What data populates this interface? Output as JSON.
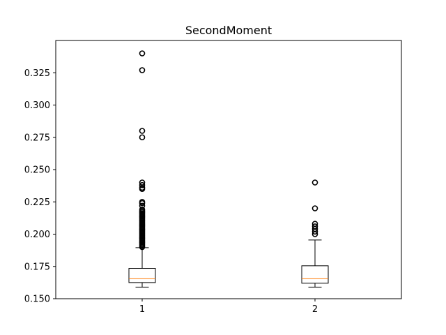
{
  "chart_data": {
    "type": "box",
    "title": "SecondMoment",
    "xlabel": "",
    "ylabel": "",
    "categories": [
      "1",
      "2"
    ],
    "ylim": [
      0.15,
      0.35
    ],
    "yticks": [
      "0.150",
      "0.175",
      "0.200",
      "0.225",
      "0.250",
      "0.275",
      "0.300",
      "0.325"
    ],
    "grid": false,
    "colors": {
      "median": "#ff7f0e",
      "box": "#000000",
      "background": "#ffffff"
    },
    "boxes": [
      {
        "category": "1",
        "whisker_low": 0.159,
        "q1": 0.1625,
        "median": 0.1655,
        "q3": 0.1735,
        "whisker_high": 0.1895,
        "outliers": [
          0.19,
          0.191,
          0.192,
          0.193,
          0.194,
          0.195,
          0.196,
          0.197,
          0.198,
          0.199,
          0.2,
          0.201,
          0.202,
          0.203,
          0.204,
          0.205,
          0.206,
          0.207,
          0.208,
          0.209,
          0.21,
          0.211,
          0.212,
          0.213,
          0.214,
          0.215,
          0.216,
          0.217,
          0.218,
          0.219,
          0.222,
          0.224,
          0.225,
          0.235,
          0.236,
          0.238,
          0.24,
          0.275,
          0.28,
          0.327,
          0.34
        ]
      },
      {
        "category": "2",
        "whisker_low": 0.159,
        "q1": 0.162,
        "median": 0.1655,
        "q3": 0.1755,
        "whisker_high": 0.1955,
        "outliers": [
          0.2,
          0.202,
          0.204,
          0.206,
          0.208,
          0.22,
          0.24
        ]
      }
    ]
  }
}
